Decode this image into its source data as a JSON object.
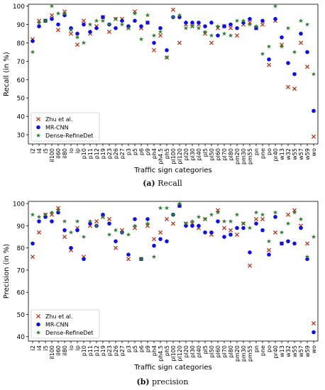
{
  "chart_data": [
    {
      "type": "scatter",
      "caption_letter": "(a)",
      "caption_text": "Recall",
      "xlabel": "Traffic sign categories",
      "ylabel": "Recall (in %)",
      "ylim": [
        25,
        101
      ],
      "yticks": [
        30,
        40,
        50,
        60,
        70,
        80,
        90,
        100
      ],
      "grid": false,
      "legend_position": "bottom-left",
      "categories": [
        "i2",
        "i4",
        "i5",
        "il100",
        "il60",
        "il80",
        "io",
        "ip",
        "p10",
        "p11",
        "p12",
        "p19",
        "p23",
        "p26",
        "p27",
        "p3",
        "p5",
        "p6",
        "p9",
        "ph4",
        "ph4.5",
        "ph5",
        "pl100",
        "pl120",
        "pl20",
        "pl30",
        "pl40",
        "pl5",
        "pl50",
        "pl60",
        "pl70",
        "pl80",
        "pm20",
        "pm30",
        "pm55",
        "pn",
        "pne",
        "po",
        "pr40",
        "w13",
        "w32",
        "w55",
        "w57",
        "w59",
        "wo"
      ],
      "series": [
        {
          "name": "Zhu et al.",
          "marker": "x",
          "color": "#b03a20",
          "values": [
            82,
            92,
            92,
            95,
            87,
            97,
            85,
            79,
            92,
            85,
            89,
            94,
            86,
            93,
            93,
            88,
            97,
            88,
            91,
            76,
            84,
            72,
            98,
            80,
            90,
            89,
            90,
            85,
            80,
            88,
            89,
            88,
            84,
            90,
            91,
            88,
            90,
            68,
            92,
            79,
            56,
            55,
            80,
            67,
            29
          ]
        },
        {
          "name": "MR-CNN",
          "marker": "o",
          "color": "#1010e0",
          "values": [
            81,
            89,
            92,
            93,
            90,
            95,
            88,
            85,
            90,
            86,
            88,
            94,
            90,
            88,
            92,
            89,
            92,
            89,
            91,
            80,
            88,
            76,
            94,
            94,
            91,
            91,
            91,
            89,
            91,
            84,
            89,
            90,
            88,
            91,
            93,
            88,
            92,
            71,
            93,
            83,
            69,
            63,
            85,
            75,
            43
          ]
        },
        {
          "name": "Dense-RefineDet",
          "marker": "*",
          "color": "#2e7d2e",
          "values": [
            75,
            91,
            92,
            100,
            96,
            96,
            87,
            83,
            80,
            90,
            92,
            92,
            90,
            93,
            90,
            88,
            96,
            82,
            95,
            84,
            86,
            72,
            94,
            95,
            88,
            89,
            88,
            86,
            84,
            89,
            85,
            84,
            92,
            92,
            90,
            89,
            74,
            78,
            100,
            78,
            88,
            75,
            92,
            90,
            63
          ]
        }
      ],
      "legend": [
        "Zhu et al.",
        "MR-CNN",
        "Dense-RefineDet"
      ]
    },
    {
      "type": "scatter",
      "caption_letter": "(b)",
      "caption_text": "precision",
      "xlabel": "Traffic sign categories",
      "ylabel": "Precision (in %)",
      "ylim": [
        38,
        101
      ],
      "yticks": [
        40,
        50,
        60,
        70,
        80,
        90,
        100
      ],
      "grid": false,
      "legend_position": "bottom-left",
      "categories": [
        "i2",
        "i4",
        "i5",
        "il100",
        "il60",
        "il80",
        "io",
        "ip",
        "p10",
        "p11",
        "p12",
        "p19",
        "p23",
        "p26",
        "p27",
        "p3",
        "p5",
        "p6",
        "p9",
        "ph4",
        "ph4.5",
        "ph5",
        "pl100",
        "pl120",
        "pl20",
        "pl30",
        "pl40",
        "pl5",
        "pl50",
        "pl60",
        "pl70",
        "pl80",
        "pm20",
        "pm30",
        "pm55",
        "pn",
        "pne",
        "po",
        "pr40",
        "w13",
        "w32",
        "w55",
        "w57",
        "w59",
        "wo"
      ],
      "series": [
        {
          "name": "Zhu et al.",
          "marker": "x",
          "color": "#b03a20",
          "values": [
            76,
            87,
            95,
            95,
            98,
            85,
            79,
            89,
            76,
            90,
            92,
            94,
            93,
            80,
            88,
            75,
            89,
            75,
            90,
            84,
            87,
            93,
            91,
            99,
            91,
            91,
            89,
            93,
            86,
            97,
            89,
            88,
            86,
            91,
            72,
            93,
            93,
            79,
            87,
            82,
            95,
            97,
            90,
            82,
            46
          ]
        },
        {
          "name": "MR-CNN",
          "marker": "o",
          "color": "#1010e0",
          "values": [
            82,
            92,
            94,
            92,
            96,
            88,
            80,
            88,
            75,
            91,
            90,
            95,
            91,
            83,
            87,
            77,
            93,
            75,
            93,
            81,
            84,
            83,
            95,
            99,
            90,
            90,
            90,
            87,
            87,
            92,
            85,
            86,
            89,
            89,
            78,
            91,
            88,
            77,
            94,
            82,
            83,
            82,
            89,
            75,
            42
          ]
        },
        {
          "name": "Dense-RefineDet",
          "marker": "*",
          "color": "#2e7d2e",
          "values": [
            95,
            94,
            95,
            96,
            97,
            92,
            87,
            92,
            85,
            92,
            90,
            94,
            86,
            88,
            87,
            86,
            90,
            75,
            91,
            76,
            98,
            98,
            95,
            100,
            91,
            92,
            94,
            93,
            95,
            96,
            92,
            92,
            95,
            91,
            89,
            96,
            95,
            83,
            96,
            87,
            91,
            96,
            93,
            76,
            85
          ]
        }
      ],
      "legend": [
        "Zhu et al.",
        "MR-CNN",
        "Dense-RefineDet"
      ]
    }
  ]
}
